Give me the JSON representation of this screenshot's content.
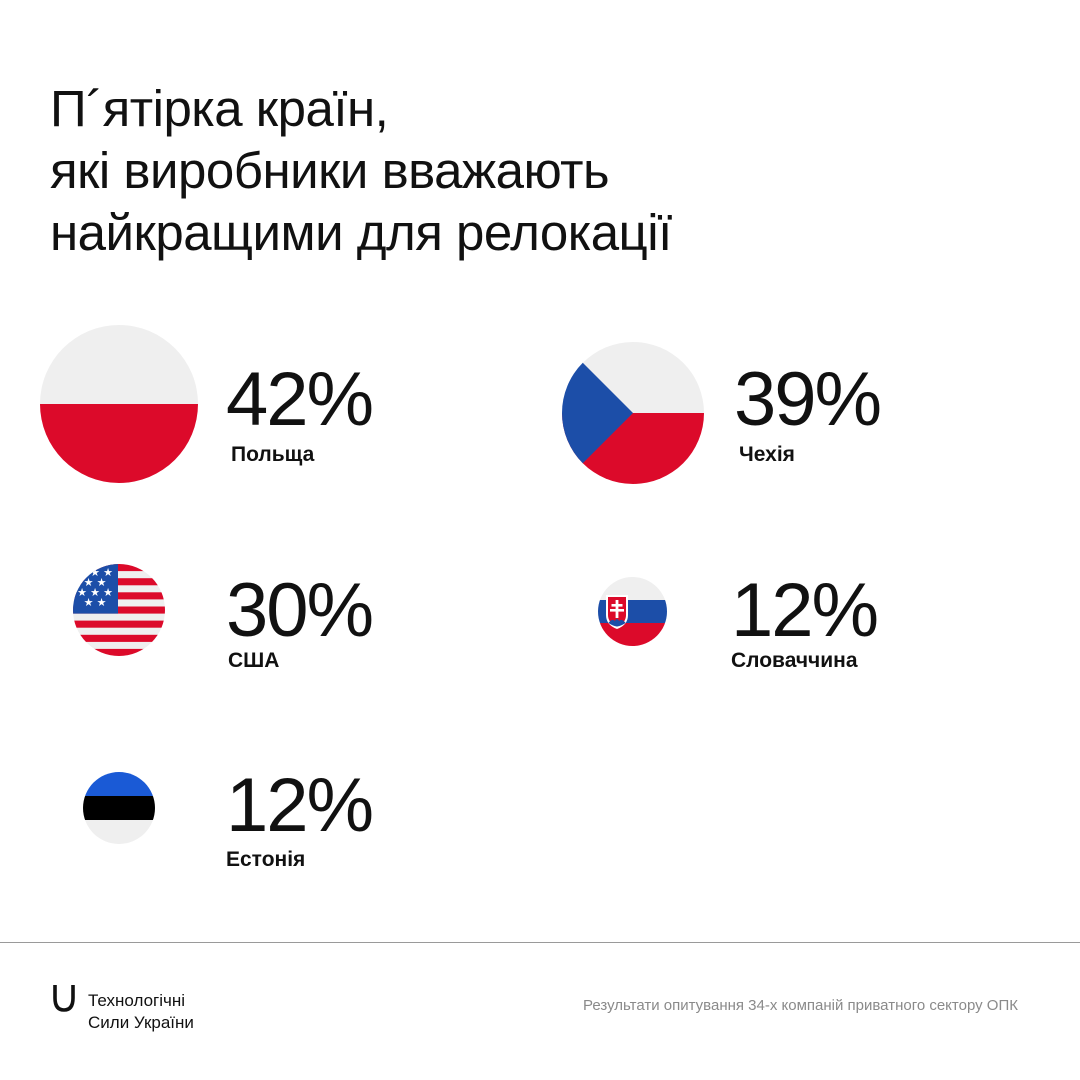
{
  "title_lines": [
    "П´ятірка країн,",
    "які виробники вважають",
    "найкращими для релокації"
  ],
  "chart_data": {
    "type": "bar",
    "title": "П´ятірка країн, які виробники вважають найкращими для релокації",
    "categories": [
      "Польща",
      "Чехія",
      "США",
      "Словаччина",
      "Естонія"
    ],
    "values": [
      42,
      39,
      30,
      12,
      12
    ],
    "unit": "%"
  },
  "items": [
    {
      "pct": "42%",
      "country": "Польща",
      "flag_icon": "poland-flag-icon",
      "value": 42
    },
    {
      "pct": "39%",
      "country": "Чехія",
      "flag_icon": "czechia-flag-icon",
      "value": 39
    },
    {
      "pct": "30%",
      "country": "США",
      "flag_icon": "usa-flag-icon",
      "value": 30
    },
    {
      "pct": "12%",
      "country": "Словаччина",
      "flag_icon": "slovakia-flag-icon",
      "value": 12
    },
    {
      "pct": "12%",
      "country": "Естонія",
      "flag_icon": "estonia-flag-icon",
      "value": 12
    }
  ],
  "footer": {
    "brand_lines": [
      "Технологічні",
      "Сили України"
    ],
    "source": "Результати опитування 34-х компаній приватного сектору ОПК"
  },
  "colors": {
    "text": "#111111",
    "muted": "#8a8a8a",
    "flag_white": "#efefef",
    "red": "#dc0a2a",
    "blue": "#1c4ea8",
    "estonia_blue": "#1a5ad6",
    "estonia_black": "#000000"
  }
}
